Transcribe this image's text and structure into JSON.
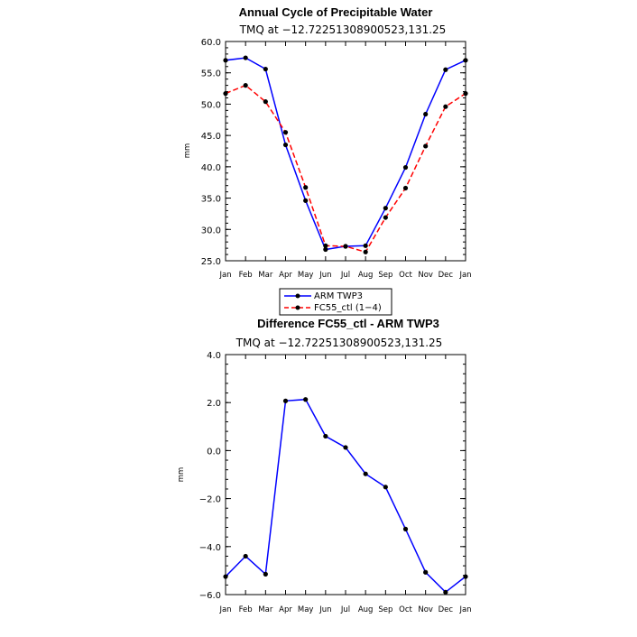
{
  "chart_data": [
    {
      "type": "line",
      "title": "Annual Cycle of Precipitable Water",
      "subtitle": "TMQ at −12.72251308900523,131.25",
      "xlabel": "",
      "ylabel": "mm",
      "categories": [
        "Jan",
        "Feb",
        "Mar",
        "Apr",
        "May",
        "Jun",
        "Jul",
        "Aug",
        "Sep",
        "Oct",
        "Nov",
        "Dec",
        "Jan"
      ],
      "ylim": [
        25.0,
        60.0
      ],
      "yticks": [
        "25.0",
        "30.0",
        "35.0",
        "40.0",
        "45.0",
        "50.0",
        "55.0",
        "60.0"
      ],
      "ytick_values": [
        25,
        30,
        35,
        40,
        45,
        50,
        55,
        60
      ],
      "series": [
        {
          "name": "ARM TWP3",
          "color": "#0000ff",
          "dash": "solid",
          "values": [
            57.0,
            57.4,
            55.6,
            43.5,
            34.6,
            26.8,
            27.3,
            27.4,
            33.4,
            39.9,
            48.4,
            55.5,
            57.0
          ]
        },
        {
          "name": "FC55_ctl (1−4)",
          "color": "#ff0000",
          "dash": "dashed",
          "values": [
            51.7,
            53.0,
            50.4,
            45.5,
            36.7,
            27.4,
            27.3,
            26.4,
            31.9,
            36.6,
            43.3,
            49.6,
            51.7
          ]
        }
      ],
      "legend": "below"
    },
    {
      "type": "line",
      "title": "Difference FC55_ctl - ARM TWP3",
      "subtitle": "TMQ at −12.72251308900523,131.25",
      "xlabel": "",
      "ylabel": "mm",
      "categories": [
        "Jan",
        "Feb",
        "Mar",
        "Apr",
        "May",
        "Jun",
        "Jul",
        "Aug",
        "Sep",
        "Oct",
        "Nov",
        "Dec",
        "Jan"
      ],
      "ylim": [
        -6.0,
        4.0
      ],
      "yticks": [
        "−6.0",
        "−4.0",
        "−2.0",
        "0.0",
        "2.0",
        "4.0"
      ],
      "ytick_values": [
        -6,
        -4,
        -2,
        0,
        2,
        4
      ],
      "series": [
        {
          "name": "FC55_ctl - ARM TWP3",
          "color": "#0000ff",
          "dash": "solid",
          "values": [
            -5.25,
            -4.4,
            -5.15,
            2.07,
            2.13,
            0.6,
            0.13,
            -0.97,
            -1.52,
            -3.27,
            -5.07,
            -5.9,
            -5.25
          ]
        }
      ]
    }
  ]
}
